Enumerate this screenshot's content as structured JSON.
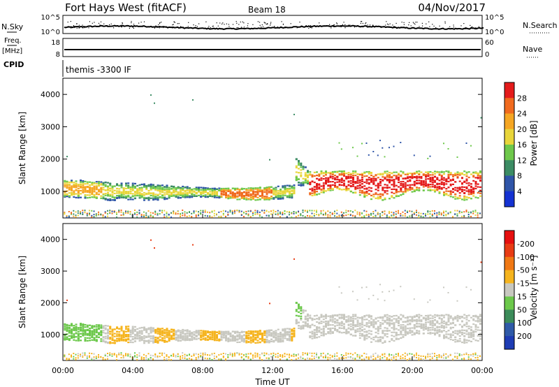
{
  "header": {
    "title": "Fort Hays West (fitACF)",
    "beam": "Beam 18",
    "date": "04/Nov/2017"
  },
  "side_labels": {
    "nsky": "N.Sky",
    "freq_top": "Freq.",
    "freq_unit": "[MHz]",
    "cpid": "CPID",
    "nsearch": "N.Search",
    "nave": "Nave"
  },
  "small_ticks": {
    "nsky_top": "10^5",
    "nsky_bot": "10^0",
    "nsearch_top": "10^5",
    "nsearch_bot": "10^0",
    "freq_top": "18",
    "freq_bot": "8",
    "nave_top": "60",
    "nave_bot": "0"
  },
  "cpid_text": "themis -3300 IF",
  "chart_data": [
    {
      "type": "heatmap",
      "ylabel": "Slant Range [km]",
      "yticks": [
        "1000",
        "2000",
        "3000",
        "4000"
      ],
      "ylim": [
        180,
        4500
      ],
      "colorbar": {
        "label": "Power [dB]",
        "ticks": [
          "4",
          "8",
          "12",
          "16",
          "20",
          "24",
          "28"
        ],
        "colors": [
          "#1432d2",
          "#2f55a8",
          "#3c8c64",
          "#6ec84b",
          "#e8d53a",
          "#f5a623",
          "#f06a1e",
          "#e41b1b"
        ]
      }
    },
    {
      "type": "heatmap",
      "ylabel": "Slant Range [km]",
      "yticks": [
        "1000",
        "2000",
        "3000",
        "4000"
      ],
      "ylim": [
        180,
        4500
      ],
      "colorbar": {
        "label": "Velocity [m s⁻¹]",
        "ticks": [
          "200",
          "100",
          "50",
          "15",
          "-15",
          "-50",
          "-100",
          "-200"
        ],
        "colors": [
          "#1e3cb4",
          "#2f5aa8",
          "#3c8c5a",
          "#6cc84b",
          "#c8c8c0",
          "#f5b41e",
          "#f07814",
          "#e83c14",
          "#e60f0f"
        ]
      },
      "xlabel": "Time UT",
      "xticks": [
        "00:00",
        "04:00",
        "08:00",
        "12:00",
        "16:00",
        "20:00",
        "00:00"
      ]
    }
  ]
}
